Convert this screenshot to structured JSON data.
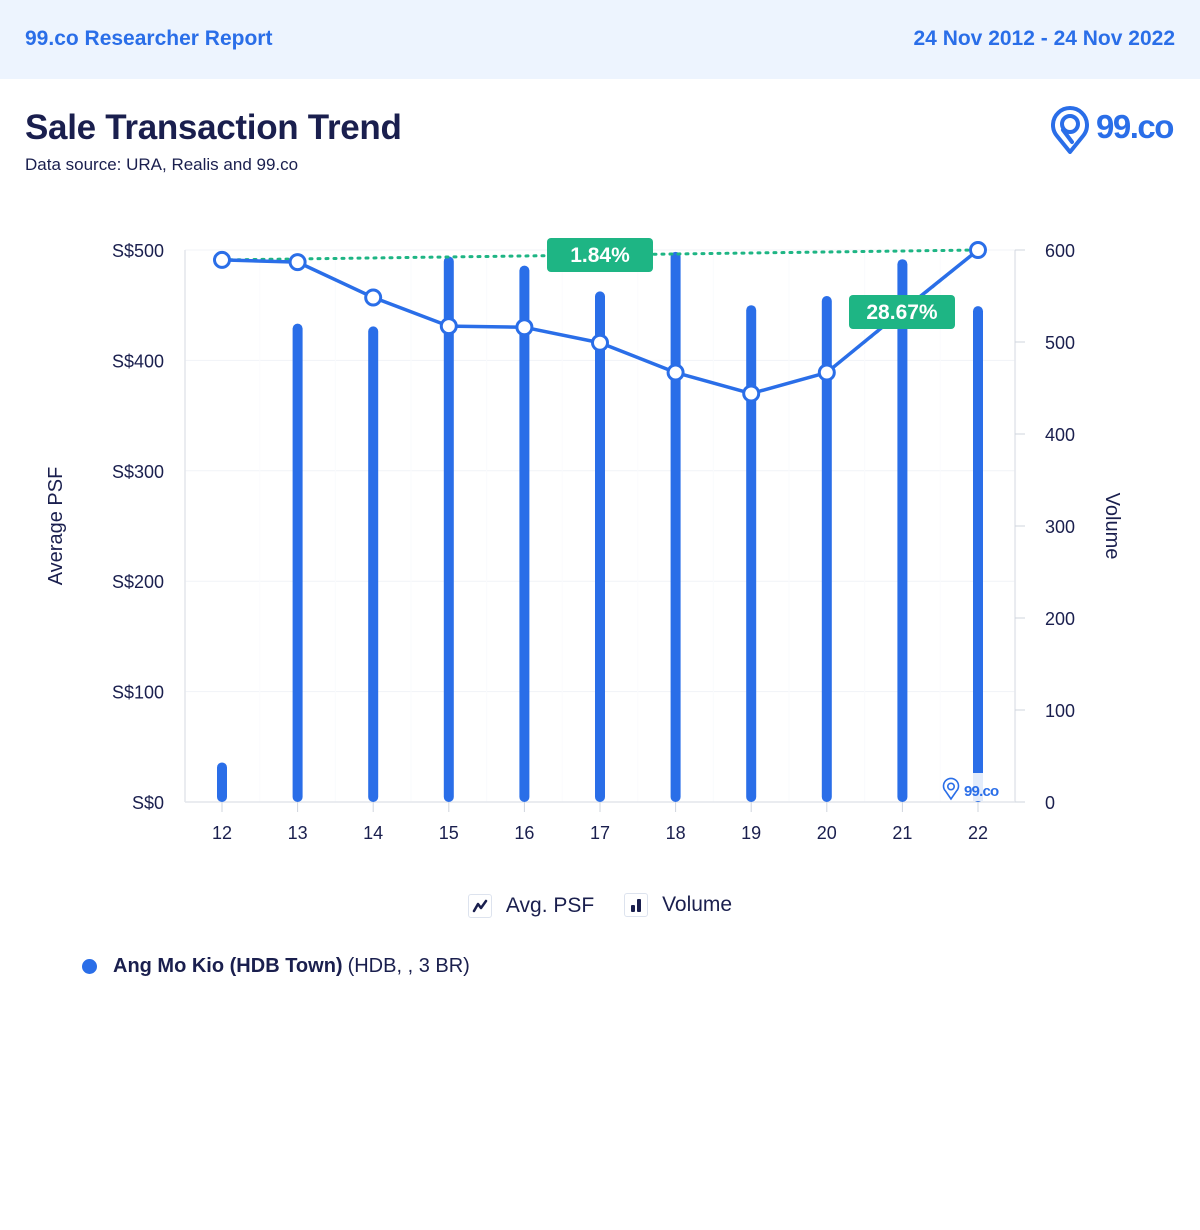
{
  "header": {
    "brand": "99.co Researcher Report",
    "date_range": "24 Nov 2012 - 24 Nov 2022"
  },
  "title": "Sale Transaction Trend",
  "subtitle": "Data source: URA, Realis and 99.co",
  "logo": {
    "text": "99.co",
    "icon": "location-pin-icon"
  },
  "watermark": {
    "text": "99.co",
    "icon": "location-pin-icon"
  },
  "colors": {
    "brand_blue": "#2a6ee8",
    "line_blue": "#2a6ee8",
    "bar_blue": "#2a6ee8",
    "badge_green": "#1eb584",
    "dark_navy": "#1a1f4e",
    "header_bg": "#edf4fe"
  },
  "chart_data": {
    "type": "bar+line",
    "title": "Sale Transaction Trend",
    "categories": [
      "12",
      "13",
      "14",
      "15",
      "16",
      "17",
      "18",
      "19",
      "20",
      "21",
      "22"
    ],
    "series": [
      {
        "name": "Avg. PSF",
        "type": "line",
        "axis": "left",
        "values": [
          491,
          489,
          457,
          431,
          430,
          416,
          389,
          370,
          389,
          445,
          500
        ]
      },
      {
        "name": "Volume",
        "type": "bar",
        "axis": "right",
        "values": [
          43,
          520,
          517,
          593,
          583,
          555,
          598,
          540,
          550,
          590,
          539
        ]
      }
    ],
    "y_left": {
      "label": "Average PSF",
      "range": [
        0,
        500
      ],
      "ticks": [
        0,
        100,
        200,
        300,
        400,
        500
      ],
      "tick_labels": [
        "S$0",
        "S$100",
        "S$200",
        "S$300",
        "S$400",
        "S$500"
      ]
    },
    "y_right": {
      "label": "Volume",
      "range": [
        0,
        600
      ],
      "ticks": [
        0,
        100,
        200,
        300,
        400,
        500,
        600
      ],
      "tick_labels": [
        "0",
        "100",
        "200",
        "300",
        "400",
        "500",
        "600"
      ]
    },
    "xlabel": "",
    "grid": true,
    "annotations": [
      {
        "text": "1.84%",
        "from": "12",
        "to": "22",
        "style": "dotted-green"
      },
      {
        "text": "28.67%",
        "from": "20",
        "to": "22",
        "style": "dotted-green"
      }
    ],
    "legend": {
      "position": "bottom-center",
      "items": [
        {
          "label": "Avg. PSF",
          "icon": "line-chart-icon"
        },
        {
          "label": "Volume",
          "icon": "bar-chart-icon"
        }
      ]
    }
  },
  "series_info": {
    "name": "Ang Mo Kio (HDB Town)",
    "detail": "(HDB, , 3 BR)"
  }
}
